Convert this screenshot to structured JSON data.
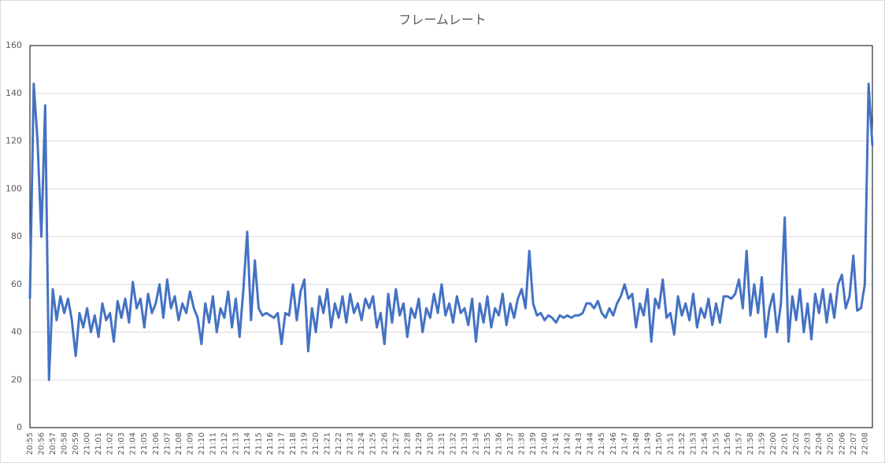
{
  "chart_data": {
    "type": "line",
    "title": "フレームレート",
    "categories": [
      "20:55",
      null,
      null,
      "20:56",
      null,
      null,
      "20:57",
      null,
      null,
      "20:58",
      null,
      null,
      "20:59",
      null,
      null,
      "21:00",
      null,
      null,
      "21:01",
      null,
      null,
      "21:02",
      null,
      null,
      "21:03",
      null,
      null,
      "21:04",
      null,
      null,
      "21:05",
      null,
      null,
      "21:06",
      null,
      null,
      "21:07",
      null,
      null,
      "21:08",
      null,
      null,
      "21:09",
      null,
      null,
      "21:10",
      null,
      null,
      "21:11",
      null,
      null,
      "21:12",
      null,
      null,
      "21:13",
      null,
      null,
      "21:14",
      null,
      null,
      "21:15",
      null,
      null,
      "21:16",
      null,
      null,
      "21:17",
      null,
      null,
      "21:18",
      null,
      null,
      "21:19",
      null,
      null,
      "21:20",
      null,
      null,
      "21:21",
      null,
      null,
      "21:22",
      null,
      null,
      "21:23",
      null,
      null,
      "21:24",
      null,
      null,
      "21:25",
      null,
      null,
      "21:26",
      null,
      null,
      "21:27",
      null,
      null,
      "21:28",
      null,
      null,
      "21:29",
      null,
      null,
      "21:30",
      null,
      null,
      "21:31",
      null,
      null,
      "21:32",
      null,
      null,
      "21:33",
      null,
      null,
      "21:34",
      null,
      null,
      "21:35",
      null,
      null,
      "21:36",
      null,
      null,
      "21:37",
      null,
      null,
      "21:38",
      null,
      null,
      "21:39",
      null,
      null,
      "21:40",
      null,
      null,
      "21:41",
      null,
      null,
      "21:42",
      null,
      null,
      "21:43",
      null,
      null,
      "21:44",
      null,
      null,
      "21:45",
      null,
      null,
      "21:46",
      null,
      null,
      "21:47",
      null,
      null,
      "21:48",
      null,
      null,
      "21:49",
      null,
      null,
      "21:50",
      null,
      null,
      "21:51",
      null,
      null,
      "21:52",
      null,
      null,
      "21:53",
      null,
      null,
      "21:54",
      null,
      null,
      "21:55",
      null,
      null,
      "21:56",
      null,
      null,
      "21:57",
      null,
      null,
      "21:58",
      null,
      null,
      "21:59",
      null,
      null,
      "22:00",
      null,
      null,
      "22:01",
      null,
      null,
      "22:02",
      null,
      null,
      "22:03",
      null,
      null,
      "22:04",
      null,
      null,
      "22:05",
      null,
      null,
      "22:06",
      null,
      null,
      "22:07",
      null,
      null,
      "22:08",
      null,
      null
    ],
    "values": [
      54,
      144,
      120,
      80,
      135,
      20,
      58,
      45,
      55,
      48,
      54,
      45,
      30,
      48,
      42,
      50,
      40,
      47,
      38,
      52,
      45,
      48,
      36,
      53,
      46,
      54,
      44,
      61,
      50,
      54,
      42,
      56,
      48,
      52,
      60,
      46,
      62,
      50,
      55,
      45,
      52,
      48,
      57,
      50,
      46,
      35,
      52,
      44,
      55,
      40,
      50,
      46,
      57,
      42,
      54,
      38,
      58,
      82,
      45,
      70,
      50,
      47,
      48,
      47,
      46,
      48,
      35,
      48,
      47,
      60,
      45,
      57,
      62,
      32,
      50,
      40,
      55,
      48,
      58,
      42,
      52,
      46,
      55,
      44,
      56,
      48,
      52,
      45,
      54,
      50,
      55,
      42,
      48,
      35,
      56,
      44,
      58,
      47,
      52,
      38,
      50,
      46,
      54,
      40,
      50,
      46,
      56,
      48,
      60,
      47,
      52,
      44,
      55,
      48,
      50,
      43,
      54,
      36,
      52,
      44,
      55,
      42,
      50,
      47,
      56,
      43,
      52,
      46,
      54,
      58,
      50,
      74,
      52,
      47,
      48,
      45,
      47,
      46,
      44,
      47,
      46,
      47,
      46,
      47,
      47,
      48,
      52,
      52,
      50,
      53,
      48,
      46,
      50,
      47,
      52,
      55,
      60,
      54,
      56,
      42,
      52,
      47,
      58,
      36,
      54,
      50,
      62,
      46,
      48,
      39,
      55,
      47,
      52,
      45,
      56,
      42,
      50,
      46,
      54,
      43,
      52,
      44,
      55,
      55,
      54,
      56,
      62,
      50,
      74,
      47,
      60,
      48,
      63,
      38,
      50,
      56,
      40,
      52,
      88,
      36,
      55,
      45,
      58,
      40,
      52,
      37,
      56,
      48,
      58,
      44,
      56,
      46,
      60,
      64,
      50,
      55,
      72,
      49,
      50,
      60,
      144,
      118
    ],
    "color": "#4472c4",
    "ylim": [
      0,
      160
    ],
    "yticks": [
      0,
      20,
      40,
      60,
      80,
      100,
      120,
      140,
      160
    ],
    "grid": true
  }
}
